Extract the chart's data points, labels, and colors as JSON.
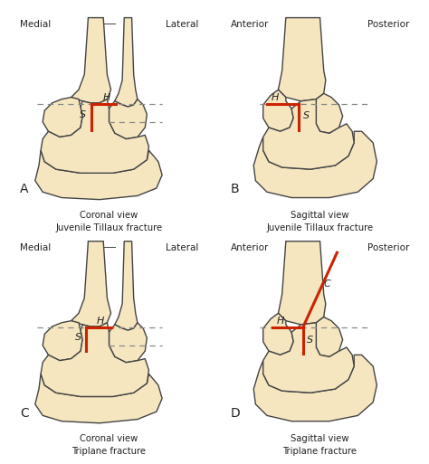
{
  "bg_color": "#ffffff",
  "bone_fill": "#f5e6c0",
  "bone_edge": "#444444",
  "fracture_color": "#cc2200",
  "dashed_color": "#888888",
  "label_color": "#222222",
  "panels": [
    {
      "id": "A",
      "label": "A",
      "title_line1": "Coronal view",
      "title_line2": "Juvenile Tillaux fracture",
      "left_label": "Medial",
      "right_label": "Lateral",
      "view": "coronal",
      "fracture_type": "tillaux"
    },
    {
      "id": "B",
      "label": "B",
      "title_line1": "Sagittal view",
      "title_line2": "Juvenile Tillaux fracture",
      "left_label": "Anterior",
      "right_label": "Posterior",
      "view": "sagittal",
      "fracture_type": "tillaux"
    },
    {
      "id": "C",
      "label": "C",
      "title_line1": "Coronal view",
      "title_line2": "Triplane fracture",
      "left_label": "Medial",
      "right_label": "Lateral",
      "view": "coronal",
      "fracture_type": "triplane"
    },
    {
      "id": "D",
      "label": "D",
      "title_line1": "Sagittal view",
      "title_line2": "Triplane fracture",
      "left_label": "Anterior",
      "right_label": "Posterior",
      "view": "sagittal",
      "fracture_type": "triplane"
    }
  ]
}
